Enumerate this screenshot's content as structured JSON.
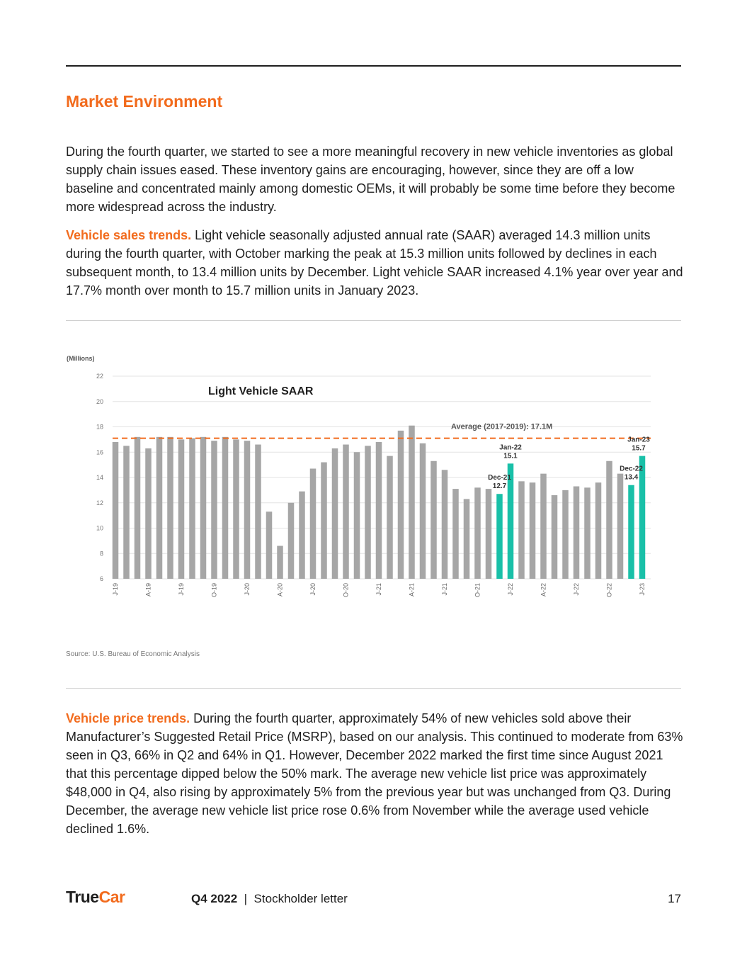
{
  "section_title": "Market Environment",
  "intro": "During the fourth quarter, we started to see a more meaningful recovery in new vehicle inventories as global supply chain issues eased. These inventory gains are encouraging, however, since they are off a low baseline and concentrated mainly among domestic OEMs, it will probably be some time before they become more widespread across the industry.",
  "sales": {
    "lead": "Vehicle sales trends.",
    "body": " Light vehicle seasonally adjusted annual rate (SAAR) averaged 14.3 million units during the fourth quarter, with October marking the peak at 15.3 million units followed by declines in each subsequent month, to 13.4 million units by December.  Light vehicle SAAR increased 4.1% year over year and 17.7% month over month to 15.7 million units in January 2023."
  },
  "price": {
    "lead": "Vehicle price trends.",
    "body": " During the fourth quarter, approximately 54% of new vehicles sold above their Manufacturer’s Suggested Retail Price (MSRP), based on our analysis. This continued to moderate from 63% seen in Q3, 66% in Q2 and 64% in Q1. However, December 2022 marked the first time since August 2021 that this percentage dipped below the 50% mark. The average new vehicle list price was approximately $48,000 in Q4, also rising by approximately 5% from the previous year but was unchanged from Q3. During December, the average new vehicle list price rose 0.6% from November while the average used vehicle declined 1.6%."
  },
  "source": "Source: U.S. Bureau of Economic Analysis",
  "footer": {
    "logo_main": "True",
    "logo_accent": "Car",
    "doc_bold": "Q4 2022",
    "doc_sep": "  |  ",
    "doc_rest": "Stockholder letter",
    "page": "17"
  },
  "chart_data": {
    "type": "bar",
    "title": "Light Vehicle SAAR",
    "unit_label": "(Millions)",
    "ylim": [
      6,
      22
    ],
    "yticks": [
      6,
      8,
      10,
      12,
      14,
      16,
      18,
      20,
      22
    ],
    "grid": true,
    "x_tick_labels": [
      "J-19",
      "A-19",
      "J-19",
      "O-19",
      "J-20",
      "A-20",
      "J-20",
      "O-20",
      "J-21",
      "A-21",
      "J-21",
      "O-21",
      "J-22",
      "A-22",
      "J-22",
      "O-22",
      "J-23"
    ],
    "reference_line": {
      "value": 17.1,
      "label": "Average (2017-2019): 17.1M"
    },
    "colors": {
      "bar": "#a6a6a6",
      "highlight": "#19c0a8",
      "reference": "#f26b1d",
      "grid": "#e3e3e3"
    },
    "values": [
      16.8,
      16.5,
      17.2,
      16.3,
      17.2,
      17.2,
      17.0,
      17.1,
      17.2,
      16.9,
      17.2,
      17.0,
      16.9,
      16.6,
      11.3,
      8.6,
      12.0,
      12.9,
      14.7,
      15.2,
      16.3,
      16.6,
      16.0,
      16.5,
      16.8,
      15.7,
      17.7,
      18.1,
      16.7,
      15.3,
      14.6,
      13.1,
      12.3,
      13.2,
      13.1,
      12.7,
      15.1,
      13.7,
      13.6,
      14.3,
      12.6,
      13.0,
      13.3,
      13.2,
      13.6,
      15.3,
      14.3,
      13.4,
      15.7
    ],
    "highlight_indices": [
      35,
      36,
      47,
      48
    ],
    "annotations": [
      {
        "index": 35,
        "label": "Dec-21",
        "value": "12.7"
      },
      {
        "index": 36,
        "label": "Jan-22",
        "value": "15.1"
      },
      {
        "index": 47,
        "label": "Dec-22",
        "value": "13.4"
      },
      {
        "index": 48,
        "label": "Jan-23",
        "value": "15.7"
      }
    ]
  }
}
